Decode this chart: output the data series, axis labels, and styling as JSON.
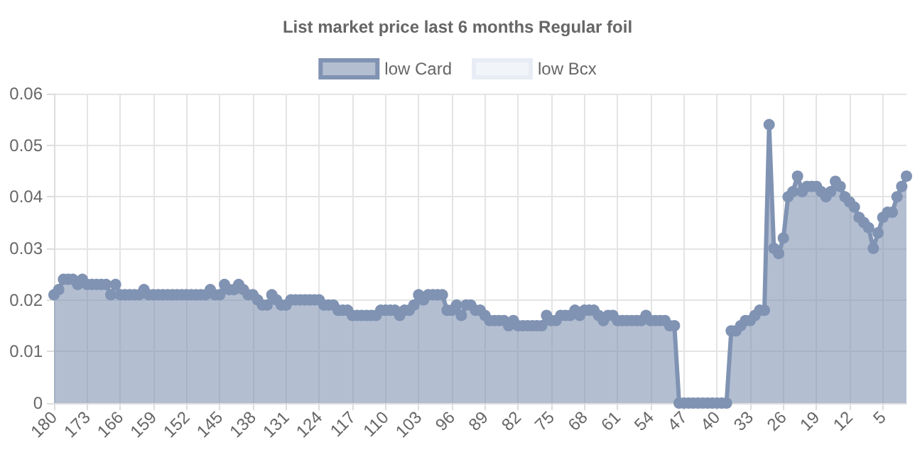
{
  "chart_data": {
    "type": "area",
    "title": "List market price last 6 months Regular foil",
    "categories": [
      "180",
      null,
      null,
      null,
      null,
      null,
      null,
      "173",
      null,
      null,
      null,
      null,
      null,
      null,
      "166",
      null,
      null,
      null,
      null,
      null,
      null,
      "159",
      null,
      null,
      null,
      null,
      null,
      null,
      "152",
      null,
      null,
      null,
      null,
      null,
      null,
      "145",
      null,
      null,
      null,
      null,
      null,
      null,
      "138",
      null,
      null,
      null,
      null,
      null,
      null,
      "131",
      null,
      null,
      null,
      null,
      null,
      null,
      "124",
      null,
      null,
      null,
      null,
      null,
      null,
      "117",
      null,
      null,
      null,
      null,
      null,
      null,
      "110",
      null,
      null,
      null,
      null,
      null,
      null,
      "103",
      null,
      null,
      null,
      null,
      null,
      null,
      "96",
      null,
      null,
      null,
      null,
      null,
      null,
      "89",
      null,
      null,
      null,
      null,
      null,
      null,
      "82",
      null,
      null,
      null,
      null,
      null,
      null,
      "75",
      null,
      null,
      null,
      null,
      null,
      null,
      "68",
      null,
      null,
      null,
      null,
      null,
      null,
      "61",
      null,
      null,
      null,
      null,
      null,
      null,
      "54",
      null,
      null,
      null,
      null,
      null,
      null,
      "47",
      null,
      null,
      null,
      null,
      null,
      null,
      "40",
      null,
      null,
      null,
      null,
      null,
      null,
      "33",
      null,
      null,
      null,
      null,
      null,
      null,
      "26",
      null,
      null,
      null,
      null,
      null,
      null,
      "19",
      null,
      null,
      null,
      null,
      null,
      null,
      "12",
      null,
      null,
      null,
      null,
      null,
      null,
      "5",
      null,
      null,
      null,
      null,
      null
    ],
    "series": [
      {
        "name": "low Card",
        "color": "#8093b3",
        "values": [
          0.021,
          0.022,
          0.024,
          0.024,
          0.024,
          0.023,
          0.024,
          0.023,
          0.023,
          0.023,
          0.023,
          0.023,
          0.021,
          0.023,
          0.021,
          0.021,
          0.021,
          0.021,
          0.021,
          0.022,
          0.021,
          0.021,
          0.021,
          0.021,
          0.021,
          0.021,
          0.021,
          0.021,
          0.021,
          0.021,
          0.021,
          0.021,
          0.021,
          0.022,
          0.021,
          0.021,
          0.023,
          0.022,
          0.022,
          0.023,
          0.022,
          0.021,
          0.021,
          0.02,
          0.019,
          0.019,
          0.021,
          0.02,
          0.019,
          0.019,
          0.02,
          0.02,
          0.02,
          0.02,
          0.02,
          0.02,
          0.02,
          0.019,
          0.019,
          0.019,
          0.018,
          0.018,
          0.018,
          0.017,
          0.017,
          0.017,
          0.017,
          0.017,
          0.017,
          0.018,
          0.018,
          0.018,
          0.018,
          0.017,
          0.018,
          0.018,
          0.019,
          0.021,
          0.02,
          0.021,
          0.021,
          0.021,
          0.021,
          0.018,
          0.018,
          0.019,
          0.017,
          0.019,
          0.019,
          0.018,
          0.018,
          0.017,
          0.016,
          0.016,
          0.016,
          0.016,
          0.015,
          0.016,
          0.015,
          0.015,
          0.015,
          0.015,
          0.015,
          0.015,
          0.017,
          0.016,
          0.016,
          0.017,
          0.017,
          0.017,
          0.018,
          0.017,
          0.018,
          0.018,
          0.018,
          0.017,
          0.016,
          0.017,
          0.017,
          0.016,
          0.016,
          0.016,
          0.016,
          0.016,
          0.016,
          0.017,
          0.016,
          0.016,
          0.016,
          0.016,
          0.015,
          0.015,
          0,
          0,
          0,
          0,
          0,
          0,
          0,
          0,
          0,
          0,
          0,
          0.014,
          0.014,
          0.015,
          0.016,
          0.016,
          0.017,
          0.018,
          0.018,
          0.054,
          0.03,
          0.029,
          0.032,
          0.04,
          0.041,
          0.044,
          0.041,
          0.042,
          0.042,
          0.042,
          0.041,
          0.04,
          0.041,
          0.043,
          0.042,
          0.04,
          0.039,
          0.038,
          0.036,
          0.035,
          0.034,
          0.03,
          0.033,
          0.036,
          0.037,
          0.037,
          0.04,
          0.042,
          0.044
        ]
      },
      {
        "name": "low Bcx",
        "color": "#e8ecf5",
        "values": [
          null,
          null,
          null,
          null,
          null,
          null,
          null,
          null,
          null,
          null,
          null,
          null,
          null,
          null,
          null,
          null,
          null,
          null,
          null,
          null,
          null,
          null,
          null,
          null,
          null,
          null,
          null,
          null,
          null,
          null,
          null,
          null,
          null,
          null,
          null,
          null,
          null,
          null,
          null,
          null,
          null,
          null,
          null,
          null,
          null,
          null,
          null,
          null,
          null,
          null,
          null,
          null,
          null,
          null,
          null,
          null,
          null,
          null,
          null,
          null,
          null,
          null,
          null,
          null,
          null,
          null,
          null,
          null,
          null,
          null,
          null,
          null,
          null,
          null,
          null,
          null,
          null,
          null,
          null,
          null,
          null,
          null,
          null,
          null,
          null,
          null,
          null,
          null,
          null,
          null,
          null,
          null,
          null,
          null,
          null,
          null,
          null,
          null,
          null,
          null,
          null,
          null,
          null,
          null,
          null,
          null,
          null,
          null,
          null,
          null,
          null,
          null,
          null,
          null,
          null,
          null,
          null,
          null,
          null,
          null,
          null,
          null,
          null,
          null,
          null,
          null,
          null,
          null,
          null,
          null,
          null,
          null,
          null,
          null,
          null,
          null,
          null,
          null,
          null,
          null,
          null,
          null,
          null,
          null,
          null,
          null,
          null,
          null,
          null,
          null,
          null,
          null,
          null,
          null,
          null,
          null,
          null,
          null,
          null,
          null,
          null,
          null,
          null,
          null,
          null,
          null,
          null,
          null,
          null,
          null,
          null,
          null,
          null,
          null,
          null,
          null,
          null,
          null,
          null,
          null,
          null
        ]
      }
    ],
    "ylim": [
      0,
      0.06
    ],
    "yticks": [
      0,
      0.01,
      0.02,
      0.03,
      0.04,
      0.05,
      0.06
    ],
    "grid": true,
    "legend": "top",
    "marker": "circle"
  }
}
